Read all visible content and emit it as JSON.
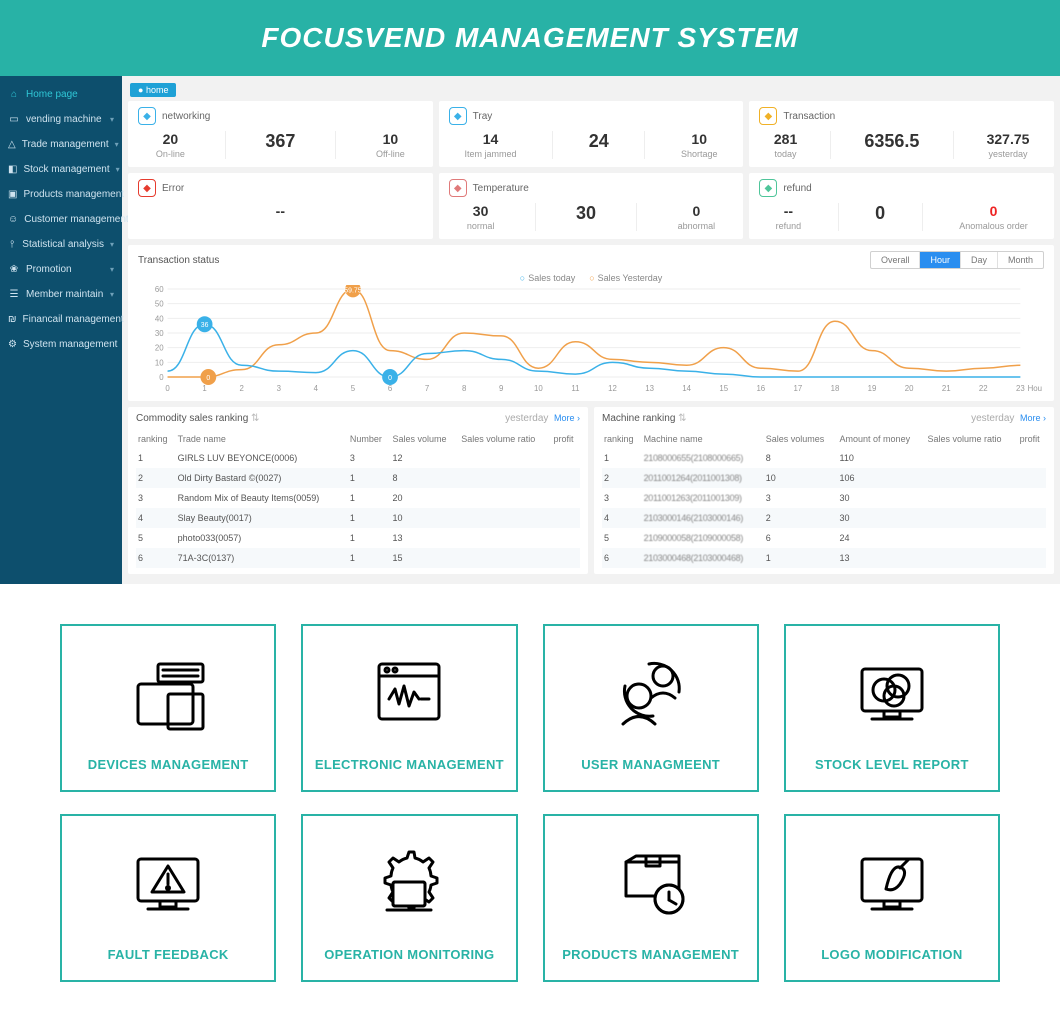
{
  "hero_title": "FOCUSVEND MANAGEMENT SYSTEM",
  "breadcrumb": "home",
  "colors": {
    "brand": "#28b2a6",
    "sidebar": "#0d4f6d",
    "bg": "#f2f2f2",
    "blue": "#2a8ef0",
    "orange": "#f0a04a",
    "teal": "#3ab1e8",
    "red": "#e22"
  },
  "sidebar": {
    "items": [
      {
        "icon": "home",
        "label": "Home page",
        "active": true,
        "expand": false
      },
      {
        "icon": "machine",
        "label": "vending machine",
        "expand": true
      },
      {
        "icon": "trade",
        "label": "Trade management",
        "expand": true
      },
      {
        "icon": "stock",
        "label": "Stock management",
        "expand": true
      },
      {
        "icon": "products",
        "label": "Products management",
        "expand": false
      },
      {
        "icon": "customer",
        "label": "Customer management",
        "expand": false
      },
      {
        "icon": "stats",
        "label": "Statistical analysis",
        "expand": true
      },
      {
        "icon": "promo",
        "label": "Promotion",
        "expand": true
      },
      {
        "icon": "member",
        "label": "Member maintain",
        "expand": true
      },
      {
        "icon": "finance",
        "label": "Financail management",
        "expand": false
      },
      {
        "icon": "system",
        "label": "System management",
        "expand": false
      }
    ]
  },
  "cards": {
    "networking": {
      "title": "networking",
      "icon_color": "#3ab1e8",
      "metrics": [
        {
          "val": "20",
          "lab": "On-line"
        },
        {
          "val": "367",
          "lab": "",
          "big": true
        },
        {
          "val": "10",
          "lab": "Off-line"
        }
      ]
    },
    "tray": {
      "title": "Tray",
      "icon_color": "#3ab1e8",
      "metrics": [
        {
          "val": "14",
          "lab": "Item jammed"
        },
        {
          "val": "24",
          "lab": "",
          "big": true
        },
        {
          "val": "10",
          "lab": "Shortage"
        }
      ]
    },
    "transaction": {
      "title": "Transaction",
      "icon_color": "#f0b127",
      "metrics": [
        {
          "val": "281",
          "lab": "today"
        },
        {
          "val": "6356.5",
          "lab": "",
          "big": true
        },
        {
          "val": "327.75",
          "lab": "yesterday"
        }
      ]
    },
    "error": {
      "title": "Error",
      "icon_color": "#e63b2e",
      "metrics": [
        {
          "val": "--",
          "lab": ""
        }
      ]
    },
    "temperature": {
      "title": "Temperature",
      "icon_color": "#e07a7a",
      "metrics": [
        {
          "val": "30",
          "lab": "normal"
        },
        {
          "val": "30",
          "lab": "",
          "big": true
        },
        {
          "val": "0",
          "lab": "abnormal"
        }
      ]
    },
    "refund": {
      "title": "refund",
      "icon_color": "#4fc59a",
      "metrics": [
        {
          "val": "--",
          "lab": "refund"
        },
        {
          "val": "0",
          "lab": "",
          "big": true
        },
        {
          "val": "0",
          "lab": "Anomalous order",
          "red": true
        }
      ]
    }
  },
  "chart": {
    "title": "Transaction status",
    "tabs": [
      "Overall",
      "Hour",
      "Day",
      "Month"
    ],
    "active_tab": "Hour",
    "legend": {
      "today": "Sales today",
      "yesterday": "Sales Yesterday"
    },
    "x_labels": [
      "0",
      "1",
      "2",
      "3",
      "4",
      "5",
      "6",
      "7",
      "8",
      "9",
      "10",
      "11",
      "12",
      "13",
      "14",
      "15",
      "16",
      "17",
      "18",
      "19",
      "20",
      "21",
      "22",
      "23"
    ],
    "x_axis_label": "Hou",
    "ylim": [
      0,
      60
    ],
    "ytick_step": 10,
    "today_color": "#3ab1e8",
    "yesterday_color": "#f0a04a",
    "grid_color": "#eeeeee",
    "series_today": [
      4,
      36,
      8,
      4,
      3,
      18,
      0,
      16,
      18,
      12,
      4,
      2,
      10,
      6,
      4,
      2,
      0,
      0,
      0,
      0,
      0,
      0,
      0,
      0
    ],
    "series_yesterday": [
      0,
      0,
      5,
      22,
      30,
      59.75,
      18,
      12,
      30,
      28,
      6,
      24,
      12,
      10,
      8,
      20,
      6,
      4,
      38,
      18,
      6,
      4,
      6,
      8
    ],
    "markers": [
      {
        "x": 1,
        "y": 36,
        "label": "36",
        "color": "#3ab1e8"
      },
      {
        "x": 1.1,
        "y": 0,
        "label": "0",
        "color": "#f0a04a"
      },
      {
        "x": 5,
        "y": 59.75,
        "label": "59.75",
        "color": "#f0a04a"
      },
      {
        "x": 6,
        "y": 0,
        "label": "0",
        "color": "#3ab1e8"
      }
    ]
  },
  "commodity": {
    "title": "Commodity sales ranking",
    "period": "yesterday",
    "more": "More",
    "columns": [
      "ranking",
      "Trade name",
      "Number",
      "Sales volume",
      "Sales volume ratio",
      "profit"
    ],
    "rows": [
      [
        "1",
        "GIRLS LUV BEYONCE(0006)",
        "3",
        "12",
        "",
        ""
      ],
      [
        "2",
        "Old Dirty Bastard ©(0027)",
        "1",
        "8",
        "",
        ""
      ],
      [
        "3",
        "Random Mix of Beauty Items(0059)",
        "1",
        "20",
        "",
        ""
      ],
      [
        "4",
        "Slay Beauty(0017)",
        "1",
        "10",
        "",
        ""
      ],
      [
        "5",
        "photo033(0057)",
        "1",
        "13",
        "",
        ""
      ],
      [
        "6",
        "71A-3C(0137)",
        "1",
        "15",
        "",
        ""
      ]
    ]
  },
  "machine": {
    "title": "Machine ranking",
    "period": "yesterday",
    "more": "More",
    "columns": [
      "ranking",
      "Machine name",
      "Sales volumes",
      "Amount of money",
      "Sales volume ratio",
      "profit"
    ],
    "rows": [
      [
        "1",
        "2108000655(2108000665)",
        "8",
        "110",
        "",
        ""
      ],
      [
        "2",
        "2011001264(2011001308)",
        "10",
        "106",
        "",
        ""
      ],
      [
        "3",
        "2011001263(2011001309)",
        "3",
        "30",
        "",
        ""
      ],
      [
        "4",
        "2103000146(2103000146)",
        "2",
        "30",
        "",
        ""
      ],
      [
        "5",
        "2109000058(2109000058)",
        "6",
        "24",
        "",
        ""
      ],
      [
        "6",
        "2103000468(2103000468)",
        "1",
        "13",
        "",
        ""
      ]
    ]
  },
  "features": [
    {
      "label": "DEVICES MANAGEMENT",
      "icon": "devices"
    },
    {
      "label": "ELECTRONIC MANAGEMENT",
      "icon": "electronic"
    },
    {
      "label": "USER MANAGMEENT",
      "icon": "user"
    },
    {
      "label": "STOCK LEVEL REPORT",
      "icon": "stock"
    },
    {
      "label": "FAULT FEEDBACK",
      "icon": "fault"
    },
    {
      "label": "OPERATION MONITORING",
      "icon": "operation"
    },
    {
      "label": "PRODUCTS MANAGEMENT",
      "icon": "products"
    },
    {
      "label": "LOGO MODIFICATION",
      "icon": "logo"
    }
  ]
}
